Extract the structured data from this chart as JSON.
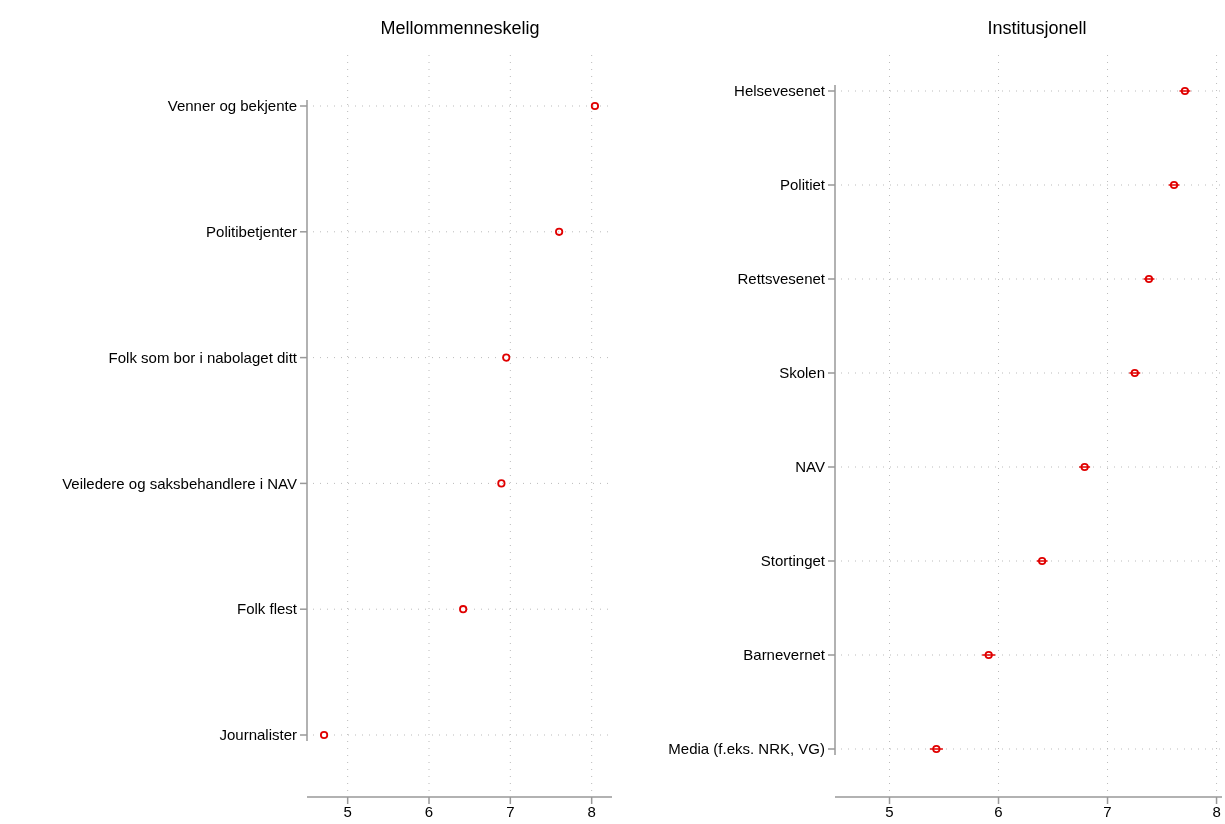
{
  "chart_data": [
    {
      "type": "scatter",
      "title": "Mellommenneskelig",
      "orientation": "horizontal",
      "categories": [
        "Venner og bekjente",
        "Politibetjenter",
        "Folk som bor i nabolaget ditt",
        "Veiledere og saksbehandlere i NAV",
        "Folk flest",
        "Journalister"
      ],
      "series": [
        {
          "color": "#e00000",
          "values": [
            8.04,
            7.6,
            6.95,
            6.89,
            6.42,
            4.71
          ]
        }
      ],
      "xlim": [
        4.5,
        8.25
      ],
      "xticks": [
        5,
        6,
        7,
        8
      ],
      "grid": true,
      "marker": "circle"
    },
    {
      "type": "scatter",
      "title": "Institusjonell",
      "orientation": "horizontal",
      "categories": [
        "Helsevesenet",
        "Politiet",
        "Rettsvesenet",
        "Skolen",
        "NAV",
        "Stortinget",
        "Barnevernet",
        "Media (f.eks. NRK, VG)"
      ],
      "series": [
        {
          "color": "#e00000",
          "values": [
            7.71,
            7.61,
            7.38,
            7.25,
            6.79,
            6.4,
            5.91,
            5.43
          ],
          "errors": [
            0.05,
            0.05,
            0.05,
            0.05,
            0.05,
            0.05,
            0.06,
            0.06
          ]
        }
      ],
      "xlim": [
        4.5,
        8.05
      ],
      "xticks": [
        5,
        6,
        7,
        8
      ],
      "grid": true,
      "marker": "circle"
    }
  ]
}
